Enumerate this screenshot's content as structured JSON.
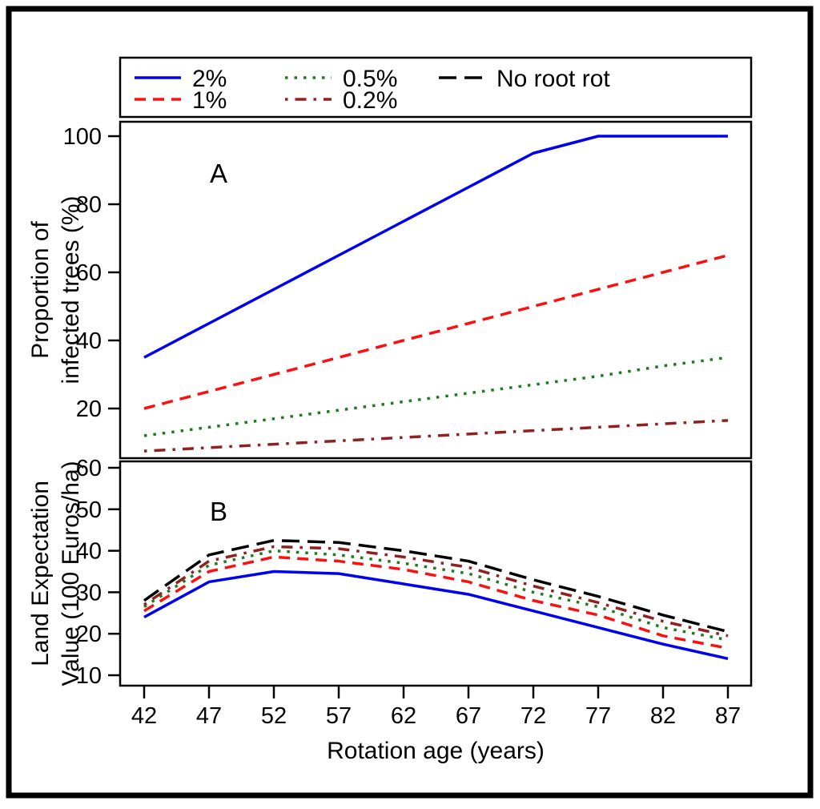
{
  "figure": {
    "x_axis_title": "Rotation age (years)",
    "panel_a": {
      "letter": "A",
      "y_axis_title": "Proportion of infected trees (%)",
      "y_axis_title_line1": "Proportion of",
      "y_axis_title_line2": "infected trees (%)"
    },
    "panel_b": {
      "letter": "B",
      "y_axis_title": "Land Expectation Value (100 Euros/ha)",
      "y_axis_title_line1": "Land Expectation",
      "y_axis_title_line2": "Value (100 Euros/ha)"
    },
    "frame_color": "#000000",
    "background_color": "#ffffff"
  },
  "chart_data": {
    "type": "line",
    "x": [
      42,
      47,
      52,
      57,
      62,
      67,
      72,
      77,
      82,
      87
    ],
    "xlabel": "Rotation age (years)",
    "legend_position": "top",
    "grid": false,
    "series_meta": [
      {
        "name": "2%",
        "color": "#0000f0",
        "line_style": "solid"
      },
      {
        "name": "1%",
        "color": "#fb0f0f",
        "line_style": "dashed"
      },
      {
        "name": "0.5%",
        "color": "#1e7a1e",
        "line_style": "dotted"
      },
      {
        "name": "0.2%",
        "color": "#8f2121",
        "line_style": "dashdot"
      },
      {
        "name": "No root rot",
        "color": "#000000",
        "line_style": "longdash"
      }
    ],
    "panels": [
      {
        "id": "A",
        "ylabel": "Proportion of infected trees (%)",
        "ylim": [
          5.9,
          105.2
        ],
        "yticks": [
          20,
          40,
          60,
          80,
          100
        ],
        "series": [
          {
            "name": "2%",
            "values": [
              35,
              45,
              55,
              65,
              75,
              85,
              95,
              100,
              100,
              100
            ]
          },
          {
            "name": "1%",
            "values": [
              20,
              25,
              30,
              35,
              40,
              45,
              50,
              55,
              60,
              65
            ]
          },
          {
            "name": "0.5%",
            "values": [
              12,
              14.5,
              17,
              19.5,
              22,
              24.5,
              27,
              29.5,
              32.5,
              35
            ]
          },
          {
            "name": "0.2%",
            "values": [
              7.5,
              8.5,
              9.5,
              10.5,
              11.5,
              12.5,
              13.5,
              14.5,
              15.5,
              16.5
            ]
          }
        ]
      },
      {
        "id": "B",
        "ylabel": "Land Expectation Value (100 Euros/ha)",
        "ylim": [
          7.7,
          61.7
        ],
        "yticks": [
          10,
          20,
          30,
          40,
          50,
          60
        ],
        "series": [
          {
            "name": "2%",
            "values": [
              24,
              32.5,
              35,
              34.5,
              32,
              29.5,
              25.5,
              21.5,
              17.5,
              14
            ]
          },
          {
            "name": "1%",
            "values": [
              25.5,
              35,
              38.5,
              37.5,
              35.5,
              32.5,
              28,
              24.5,
              19.5,
              16.5
            ]
          },
          {
            "name": "0.5%",
            "values": [
              26.5,
              36.5,
              40,
              39,
              37,
              34.5,
              30,
              26.5,
              21.5,
              18.5
            ]
          },
          {
            "name": "0.2%",
            "values": [
              27,
              37.5,
              41,
              40.5,
              38.5,
              36,
              31.5,
              27.5,
              23,
              19.5
            ]
          },
          {
            "name": "No root rot",
            "values": [
              28,
              39,
              42.5,
              42,
              40,
              37.5,
              33,
              29,
              24.5,
              20.5
            ]
          }
        ]
      }
    ]
  }
}
